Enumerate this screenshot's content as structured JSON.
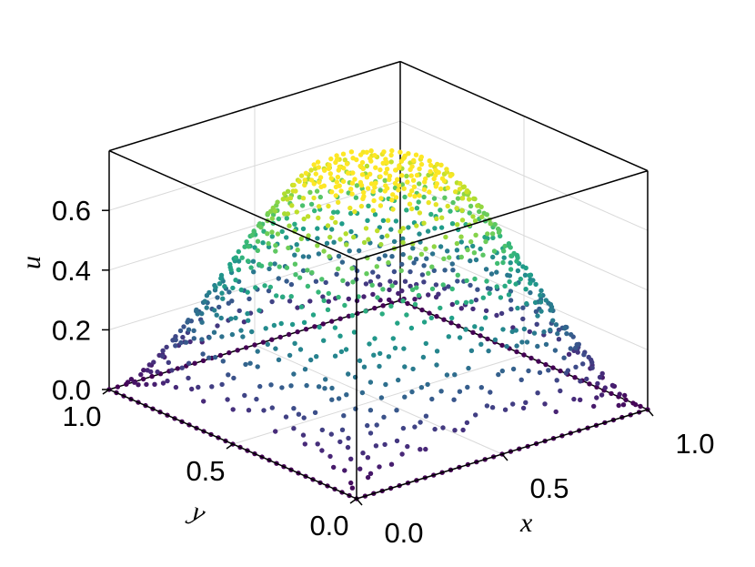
{
  "chart_data": {
    "type": "scatter",
    "title": "",
    "xlabel": "x",
    "ylabel": "y",
    "zlabel": "u",
    "xlim": [
      0,
      1
    ],
    "ylim": [
      0,
      1
    ],
    "zlim": [
      0,
      0.8
    ],
    "x_ticks": [
      "0.0",
      "0.5",
      "1.0"
    ],
    "y_ticks": [
      "0.0",
      "0.5",
      "1.0"
    ],
    "z_ticks": [
      "0.0",
      "0.2",
      "0.4",
      "0.6"
    ],
    "colormap": "viridis",
    "grid": true,
    "surface": {
      "description_formula": "u = 0.75 * smooth plateau over unit square, 0 on boundary",
      "peak_value": 0.75,
      "boundary_value": 0.0
    },
    "points": [
      [
        0.5,
        0.5,
        0.75
      ],
      [
        0.25,
        0.25,
        0.3
      ],
      [
        0.75,
        0.75,
        0.3
      ],
      [
        0.25,
        0.75,
        0.3
      ],
      [
        0.75,
        0.25,
        0.3
      ],
      [
        0.5,
        0.25,
        0.5
      ],
      [
        0.5,
        0.75,
        0.5
      ],
      [
        0.25,
        0.5,
        0.5
      ],
      [
        0.75,
        0.5,
        0.5
      ],
      [
        0.1,
        0.1,
        0.05
      ],
      [
        0.9,
        0.9,
        0.05
      ],
      [
        0.1,
        0.9,
        0.05
      ],
      [
        0.9,
        0.1,
        0.05
      ],
      [
        0.0,
        0.0,
        0.0
      ],
      [
        1.0,
        1.0,
        0.0
      ],
      [
        0.0,
        1.0,
        0.0
      ],
      [
        1.0,
        0.0,
        0.0
      ],
      [
        0.5,
        0.0,
        0.0
      ],
      [
        0.0,
        0.5,
        0.0
      ],
      [
        1.0,
        0.5,
        0.0
      ],
      [
        0.5,
        1.0,
        0.0
      ]
    ]
  }
}
